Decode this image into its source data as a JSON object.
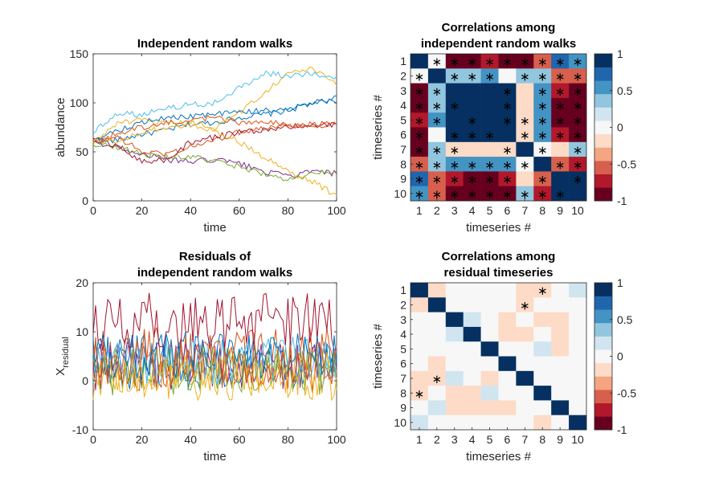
{
  "colors": {
    "series": [
      "#0072BD",
      "#D95319",
      "#EDB120",
      "#7E2F8E",
      "#77AC30",
      "#4DBEEE",
      "#A2142F",
      "#0072BD",
      "#D95319",
      "#EDB120"
    ],
    "diverging_colormap": [
      "#67001F",
      "#B2182B",
      "#D6604D",
      "#F4A582",
      "#FDDBC7",
      "#F7F7F7",
      "#D1E5F0",
      "#92C5DE",
      "#4393C3",
      "#2166AC",
      "#053061"
    ],
    "axis": "#262626"
  },
  "chart_data": [
    {
      "type": "line",
      "title": "Independent random walks",
      "xlabel": "time",
      "ylabel": "abundance",
      "xlim": [
        0,
        100
      ],
      "ylim": [
        0,
        150
      ],
      "xticks": [
        "0",
        "20",
        "40",
        "60",
        "80",
        "100"
      ],
      "yticks": [
        "0",
        "50",
        "100",
        "150"
      ],
      "grid": false,
      "note_series": "10 random walks sampled at t = 0..100 (approximate readings)",
      "series": [
        {
          "x": [
            0,
            10,
            20,
            30,
            40,
            50,
            60,
            70,
            80,
            90,
            100
          ],
          "y": [
            60,
            62,
            68,
            72,
            78,
            80,
            85,
            88,
            92,
            100,
            102
          ]
        },
        {
          "x": [
            0,
            10,
            20,
            30,
            40,
            50,
            60,
            70,
            80,
            90,
            100
          ],
          "y": [
            62,
            65,
            50,
            48,
            55,
            62,
            70,
            75,
            78,
            75,
            80
          ]
        },
        {
          "x": [
            0,
            10,
            20,
            30,
            40,
            50,
            60,
            70,
            80,
            90,
            100
          ],
          "y": [
            58,
            80,
            82,
            78,
            80,
            75,
            90,
            110,
            130,
            135,
            118
          ]
        },
        {
          "x": [
            0,
            10,
            20,
            30,
            40,
            50,
            60,
            70,
            80,
            90,
            100
          ],
          "y": [
            60,
            55,
            48,
            42,
            40,
            42,
            38,
            30,
            25,
            30,
            28
          ]
        },
        {
          "x": [
            0,
            10,
            20,
            30,
            40,
            50,
            60,
            70,
            80,
            90,
            100
          ],
          "y": [
            58,
            55,
            48,
            45,
            45,
            40,
            35,
            28,
            20,
            28,
            30
          ]
        },
        {
          "x": [
            0,
            10,
            20,
            30,
            40,
            50,
            60,
            70,
            80,
            90,
            100
          ],
          "y": [
            70,
            90,
            88,
            95,
            98,
            100,
            115,
            130,
            128,
            130,
            125
          ]
        },
        {
          "x": [
            0,
            10,
            20,
            30,
            40,
            50,
            60,
            70,
            80,
            90,
            100
          ],
          "y": [
            65,
            55,
            40,
            42,
            60,
            65,
            70,
            72,
            75,
            78,
            76
          ]
        },
        {
          "x": [
            0,
            10,
            20,
            30,
            40,
            50,
            60,
            70,
            80,
            90,
            100
          ],
          "y": [
            62,
            72,
            80,
            85,
            86,
            88,
            90,
            92,
            95,
            98,
            106
          ]
        },
        {
          "x": [
            0,
            10,
            20,
            30,
            40,
            50,
            60,
            70,
            80,
            90,
            100
          ],
          "y": [
            60,
            68,
            75,
            80,
            82,
            85,
            80,
            82,
            76,
            78,
            78
          ]
        },
        {
          "x": [
            0,
            10,
            20,
            30,
            40,
            50,
            60,
            70,
            80,
            90,
            100
          ],
          "y": [
            62,
            60,
            70,
            75,
            78,
            72,
            60,
            45,
            30,
            20,
            5
          ]
        }
      ]
    },
    {
      "type": "heatmap",
      "title": [
        "Correlations among",
        "independent random walks"
      ],
      "xlabel": "timeseries #",
      "ylabel": "timeseries #",
      "xticks": [
        "1",
        "2",
        "3",
        "4",
        "5",
        "6",
        "7",
        "8",
        "9",
        "10"
      ],
      "yticks": [
        "1",
        "2",
        "3",
        "4",
        "5",
        "6",
        "7",
        "8",
        "9",
        "10"
      ],
      "clim": [
        -1,
        1
      ],
      "colorbar_ticks": [
        "1",
        "0.5",
        "0",
        "-0.5",
        "-1"
      ],
      "values": [
        [
          1.0,
          -0.05,
          -0.9,
          -0.85,
          -0.8,
          -0.9,
          -0.85,
          -0.6,
          0.7,
          0.6
        ],
        [
          -0.05,
          1.0,
          0.4,
          0.4,
          0.5,
          -0.05,
          0.45,
          0.4,
          -0.6,
          -0.6
        ],
        [
          -0.9,
          0.4,
          1.0,
          0.9,
          0.9,
          0.85,
          -0.2,
          0.5,
          -0.8,
          -0.9
        ],
        [
          -0.85,
          0.4,
          0.9,
          1.0,
          0.95,
          0.85,
          -0.2,
          0.5,
          -0.9,
          -0.9
        ],
        [
          -0.8,
          0.5,
          0.9,
          0.95,
          1.0,
          0.9,
          -0.2,
          0.6,
          -0.85,
          -0.9
        ],
        [
          -0.9,
          -0.05,
          0.85,
          0.85,
          0.9,
          1.0,
          -0.2,
          0.5,
          -0.8,
          -0.85
        ],
        [
          -0.85,
          0.45,
          -0.2,
          -0.2,
          -0.2,
          -0.2,
          1.0,
          0.05,
          -0.2,
          0.4
        ],
        [
          -0.6,
          0.4,
          0.5,
          0.5,
          0.6,
          0.5,
          0.05,
          1.0,
          -0.6,
          -0.7
        ],
        [
          0.7,
          -0.6,
          -0.8,
          -0.9,
          -0.85,
          -0.8,
          -0.2,
          -0.6,
          1.0,
          0.9
        ],
        [
          0.6,
          -0.6,
          -0.9,
          -0.9,
          -0.9,
          -0.85,
          0.4,
          -0.7,
          0.9,
          1.0
        ]
      ],
      "significant": [
        [
          0,
          1,
          1,
          1,
          1,
          1,
          1,
          1,
          1,
          1
        ],
        [
          1,
          0,
          1,
          1,
          1,
          0,
          1,
          1,
          1,
          1
        ],
        [
          1,
          1,
          0,
          0,
          0,
          1,
          0,
          1,
          1,
          1
        ],
        [
          1,
          1,
          1,
          0,
          0,
          1,
          0,
          1,
          1,
          1
        ],
        [
          1,
          1,
          0,
          1,
          0,
          1,
          1,
          1,
          1,
          1
        ],
        [
          1,
          0,
          1,
          1,
          1,
          0,
          1,
          1,
          1,
          1
        ],
        [
          1,
          1,
          1,
          0,
          0,
          1,
          0,
          1,
          0,
          1
        ],
        [
          1,
          1,
          1,
          1,
          1,
          1,
          1,
          0,
          1,
          1
        ],
        [
          1,
          1,
          1,
          1,
          1,
          1,
          0,
          1,
          0,
          1
        ],
        [
          1,
          1,
          1,
          1,
          1,
          1,
          1,
          1,
          1,
          0
        ]
      ]
    },
    {
      "type": "line",
      "title": [
        "Residuals of",
        "independent random walks"
      ],
      "xlabel": "time",
      "ylabel": "X",
      "ylabel_subscript": "residual",
      "xlim": [
        0,
        100
      ],
      "ylim": [
        -10,
        20
      ],
      "xticks": [
        "0",
        "20",
        "40",
        "60",
        "80",
        "100"
      ],
      "yticks": [
        "-10",
        "0",
        "10",
        "20"
      ],
      "grid": false,
      "note_series": "10 noisy residual series; one (dark red) fluctuates around 12, others around 2-5",
      "series": [
        {
          "center": 4,
          "amp": 6
        },
        {
          "center": 5,
          "amp": 6
        },
        {
          "center": 2,
          "amp": 5
        },
        {
          "center": 3,
          "amp": 5
        },
        {
          "center": 2,
          "amp": 5
        },
        {
          "center": 4,
          "amp": 5
        },
        {
          "center": 12,
          "amp": 6
        },
        {
          "center": 5,
          "amp": 5
        },
        {
          "center": 3,
          "amp": 5
        },
        {
          "center": 1,
          "amp": 5
        }
      ]
    },
    {
      "type": "heatmap",
      "title": [
        "Correlations among",
        "residual timeseries"
      ],
      "xlabel": "timeseries #",
      "ylabel": "timeseries #",
      "xticks": [
        "1",
        "2",
        "3",
        "4",
        "5",
        "6",
        "7",
        "8",
        "9",
        "10"
      ],
      "yticks": [
        "1",
        "2",
        "3",
        "4",
        "5",
        "6",
        "7",
        "8",
        "9",
        "10"
      ],
      "clim": [
        -1,
        1
      ],
      "colorbar_ticks": [
        "1",
        "0.5",
        "0",
        "-0.5",
        "-1"
      ],
      "values": [
        [
          1.0,
          -0.15,
          0,
          0,
          0,
          0,
          -0.15,
          -0.25,
          0.05,
          0.15
        ],
        [
          -0.15,
          1.0,
          0,
          0,
          0,
          0,
          -0.25,
          0,
          0.05,
          0
        ],
        [
          0,
          0,
          1.0,
          0.15,
          0,
          -0.15,
          0,
          -0.15,
          -0.15,
          0
        ],
        [
          0,
          0,
          0.15,
          1.0,
          0,
          -0.15,
          -0.15,
          0,
          -0.15,
          0
        ],
        [
          0,
          0,
          0,
          0,
          1.0,
          0,
          0,
          0.15,
          -0.15,
          0
        ],
        [
          0,
          -0.15,
          0,
          0,
          0,
          1.0,
          0,
          0,
          0,
          0
        ],
        [
          -0.15,
          -0.25,
          0.15,
          0,
          -0.15,
          0,
          1.0,
          0,
          0,
          0
        ],
        [
          -0.25,
          0,
          -0.15,
          -0.15,
          0.15,
          0,
          0,
          1.0,
          0,
          0
        ],
        [
          0,
          0.15,
          -0.15,
          -0.15,
          -0.15,
          -0.15,
          0,
          0,
          1.0,
          0
        ],
        [
          0.15,
          0,
          0,
          0,
          0,
          0,
          0,
          -0.15,
          0,
          1.0
        ]
      ],
      "significant": [
        [
          0,
          0,
          0,
          0,
          0,
          0,
          0,
          1,
          0,
          0
        ],
        [
          0,
          0,
          0,
          0,
          0,
          0,
          1,
          0,
          0,
          0
        ],
        [
          0,
          0,
          0,
          0,
          0,
          0,
          0,
          0,
          0,
          0
        ],
        [
          0,
          0,
          0,
          0,
          0,
          0,
          0,
          0,
          0,
          0
        ],
        [
          0,
          0,
          0,
          0,
          0,
          0,
          0,
          0,
          0,
          0
        ],
        [
          0,
          0,
          0,
          0,
          0,
          0,
          0,
          0,
          0,
          0
        ],
        [
          0,
          1,
          0,
          0,
          0,
          0,
          0,
          0,
          0,
          0
        ],
        [
          1,
          0,
          0,
          0,
          0,
          0,
          0,
          0,
          0,
          0
        ],
        [
          0,
          0,
          0,
          0,
          0,
          0,
          0,
          0,
          0,
          0
        ],
        [
          0,
          0,
          0,
          0,
          0,
          0,
          0,
          0,
          0,
          0
        ]
      ]
    }
  ]
}
